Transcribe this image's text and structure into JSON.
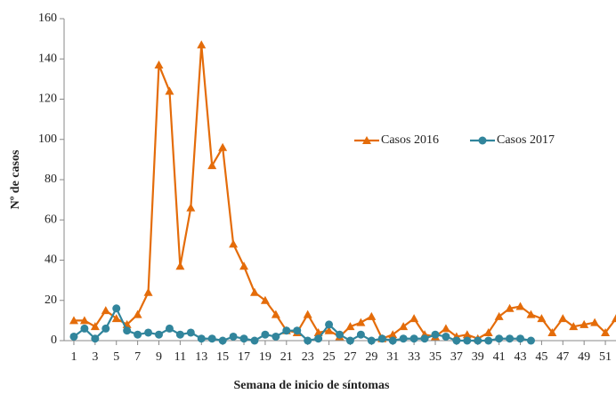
{
  "chart_data": {
    "type": "line",
    "xlabel": "Semana de inicio de síntomas",
    "ylabel": "Nº de casos",
    "x": [
      1,
      2,
      3,
      4,
      5,
      6,
      7,
      8,
      9,
      10,
      11,
      12,
      13,
      14,
      15,
      16,
      17,
      18,
      19,
      20,
      21,
      22,
      23,
      24,
      25,
      26,
      27,
      28,
      29,
      30,
      31,
      32,
      33,
      34,
      35,
      36,
      37,
      38,
      39,
      40,
      41,
      42,
      43,
      44,
      45,
      46,
      47,
      48,
      49,
      50,
      51,
      52
    ],
    "series": [
      {
        "name": "Casos 2016",
        "color": "#e46c0a",
        "marker": "triangle",
        "values": [
          10,
          10,
          7,
          15,
          11,
          8,
          13,
          24,
          137,
          124,
          37,
          66,
          147,
          87,
          96,
          48,
          37,
          24,
          20,
          13,
          5,
          4,
          13,
          4,
          5,
          2,
          7,
          9,
          12,
          1,
          3,
          7,
          11,
          3,
          2,
          6,
          2,
          3,
          1,
          4,
          12,
          16,
          17,
          13,
          11,
          4,
          11,
          7,
          8,
          9,
          4,
          11
        ]
      },
      {
        "name": "Casos 2017",
        "color": "#31859c",
        "marker": "circle",
        "values": [
          2,
          6,
          1,
          6,
          16,
          5,
          3,
          4,
          3,
          6,
          3,
          4,
          1,
          1,
          0,
          2,
          1,
          0,
          3,
          2,
          5,
          5,
          0,
          1,
          8,
          3,
          0,
          3,
          0,
          1,
          0,
          1,
          1,
          1,
          3,
          2,
          0,
          0,
          0,
          0,
          1,
          1,
          1,
          0,
          null,
          null,
          null,
          null,
          null,
          null,
          null,
          null
        ]
      }
    ],
    "xlim": [
      0.5,
      52
    ],
    "xticks": [
      1,
      3,
      5,
      7,
      9,
      11,
      13,
      15,
      17,
      19,
      21,
      23,
      25,
      27,
      29,
      31,
      33,
      35,
      37,
      39,
      41,
      43,
      45,
      47,
      49,
      51
    ],
    "ylim": [
      0,
      160
    ],
    "yticks": [
      0,
      20,
      40,
      60,
      80,
      100,
      120,
      140,
      160
    ]
  }
}
